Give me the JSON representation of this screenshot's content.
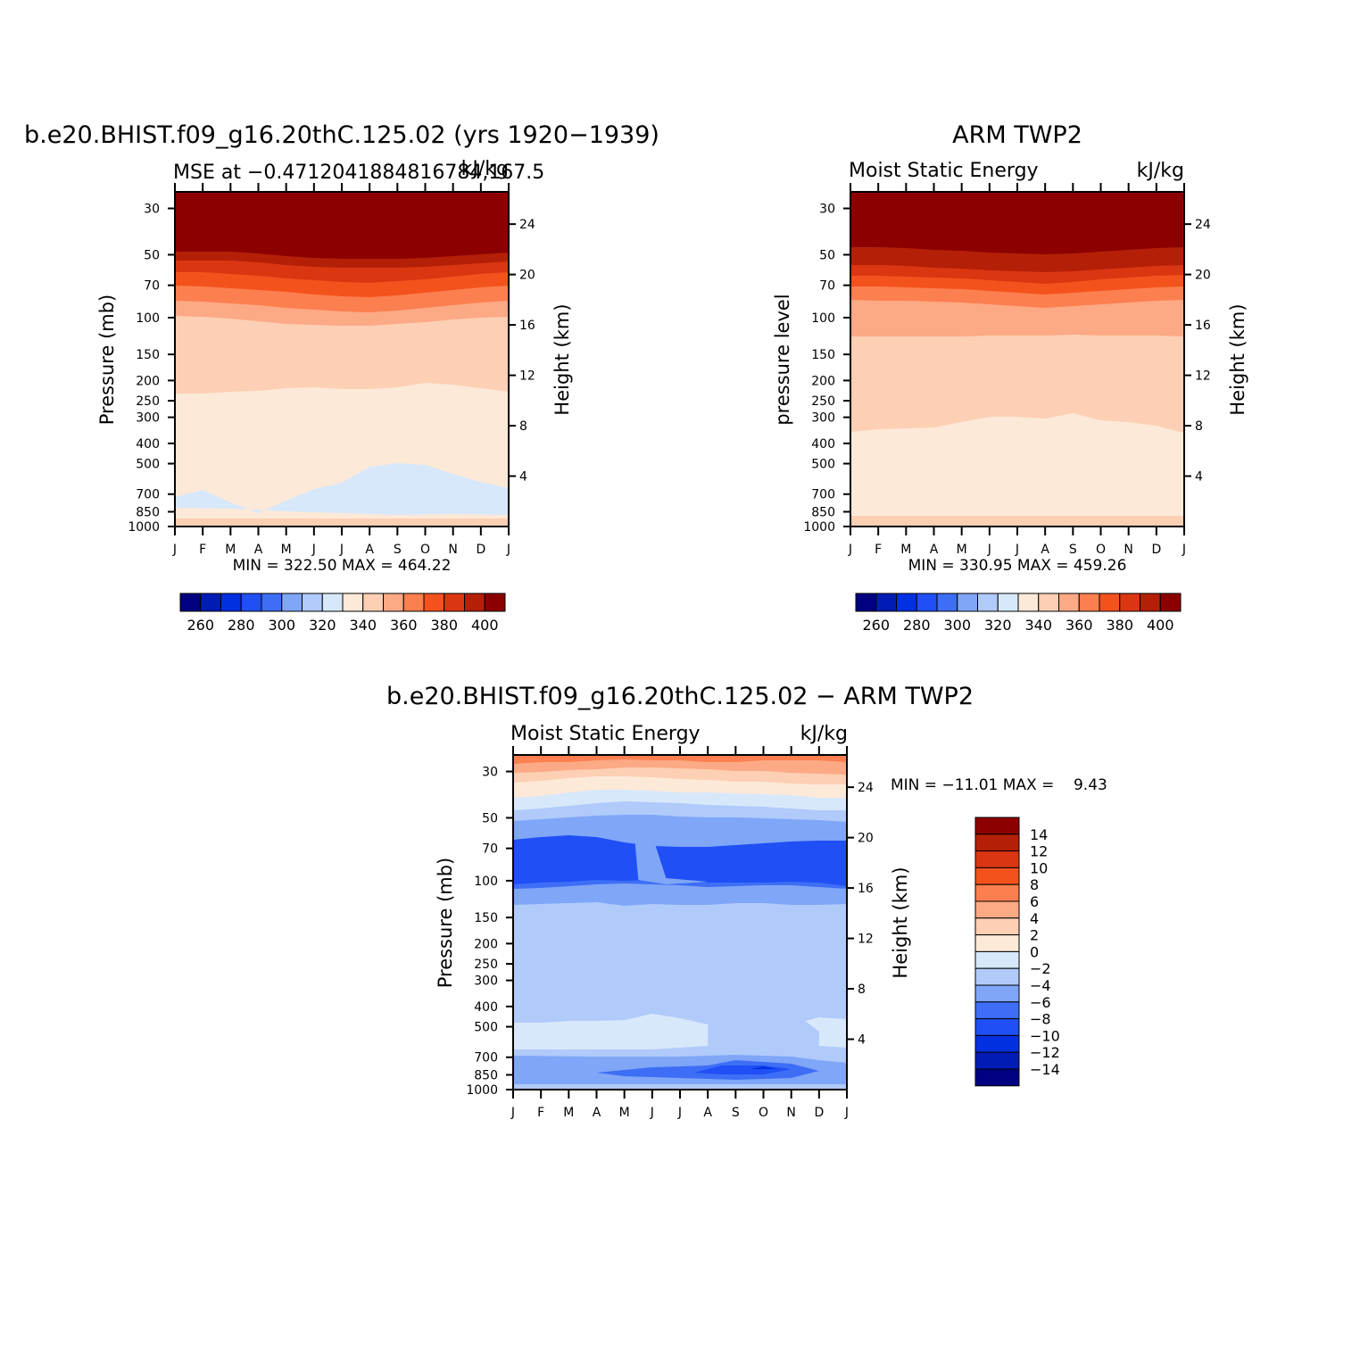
{
  "colors": {
    "levels": [
      "#000080",
      "#001cb4",
      "#0030e0",
      "#1f4ff5",
      "#3d6ef5",
      "#7fa6f7",
      "#b0cafa",
      "#d8e8fb",
      "#fde9d8",
      "#fdcfb4",
      "#fca985",
      "#fc7f4f",
      "#f4521d",
      "#db3612",
      "#b42007",
      "#8c0000"
    ]
  },
  "panels": [
    {
      "id": "model",
      "title": "b.e20.BHIST.f09_g16.20thC.125.02 (yrs 1920−1939)",
      "left_text": "MSE at −0.4712041884816784,167.5",
      "right_text": "kJ/kg",
      "ylabel": "Pressure (mb)",
      "y2label": "Height (km)",
      "stats": "MIN = 322.50 MAX = 464.22"
    },
    {
      "id": "obs",
      "title": "ARM TWP2",
      "left_text": "Moist Static Energy",
      "right_text": "kJ/kg",
      "ylabel": "pressure level",
      "y2label": "Height (km)",
      "stats": "MIN = 330.95 MAX = 459.26"
    },
    {
      "id": "diff",
      "title": "b.e20.BHIST.f09_g16.20thC.125.02 − ARM TWP2",
      "left_text": "Moist Static Energy",
      "right_text": "kJ/kg",
      "ylabel": "Pressure (mb)",
      "y2label": "Height (km)",
      "stats": "MIN = −11.01 MAX =    9.43"
    }
  ],
  "colorbars": {
    "abs_labels": [
      "260",
      "280",
      "300",
      "320",
      "340",
      "360",
      "380",
      "400"
    ],
    "diff_labels": [
      "14",
      "12",
      "10",
      "8",
      "6",
      "4",
      "2",
      "0",
      "−2",
      "−4",
      "−6",
      "−8",
      "−10",
      "−12",
      "−14"
    ]
  },
  "chart_data": [
    {
      "type": "heatmap",
      "title": "b.e20.BHIST.f09_g16.20thC.125.02 (yrs 1920−1939)",
      "subtitle": "MSE at −0.4712041884816784,167.5",
      "units": "kJ/kg",
      "ylabel": "Pressure (mb)",
      "y2label": "Height (km)",
      "x_ticks": [
        "J",
        "F",
        "M",
        "A",
        "M",
        "J",
        "J",
        "A",
        "S",
        "O",
        "N",
        "D",
        "J"
      ],
      "y_ticks": [
        30,
        50,
        70,
        100,
        150,
        200,
        250,
        300,
        400,
        500,
        700,
        850,
        1000
      ],
      "y2_ticks": [
        24,
        20,
        16,
        12,
        8,
        4
      ],
      "y_scale": "log",
      "ylim": [
        1000,
        25
      ],
      "contour_levels": [
        250,
        260,
        270,
        280,
        290,
        300,
        310,
        320,
        330,
        340,
        350,
        360,
        370,
        380,
        390,
        400
      ],
      "colorbar_labels": [
        260,
        280,
        300,
        320,
        340,
        360,
        380,
        400
      ],
      "min": 322.5,
      "max": 464.22
    },
    {
      "type": "heatmap",
      "title": "ARM TWP2",
      "subtitle": "Moist Static Energy",
      "units": "kJ/kg",
      "ylabel": "pressure level",
      "y2label": "Height (km)",
      "x_ticks": [
        "J",
        "F",
        "M",
        "A",
        "M",
        "J",
        "J",
        "A",
        "S",
        "O",
        "N",
        "D",
        "J"
      ],
      "y_ticks": [
        30,
        50,
        70,
        100,
        150,
        200,
        250,
        300,
        400,
        500,
        700,
        850,
        1000
      ],
      "y2_ticks": [
        24,
        20,
        16,
        12,
        8,
        4
      ],
      "y_scale": "log",
      "ylim": [
        1000,
        25
      ],
      "contour_levels": [
        250,
        260,
        270,
        280,
        290,
        300,
        310,
        320,
        330,
        340,
        350,
        360,
        370,
        380,
        390,
        400
      ],
      "colorbar_labels": [
        260,
        280,
        300,
        320,
        340,
        360,
        380,
        400
      ],
      "min": 330.95,
      "max": 459.26
    },
    {
      "type": "heatmap",
      "title": "b.e20.BHIST.f09_g16.20thC.125.02 − ARM TWP2",
      "subtitle": "Moist Static Energy",
      "units": "kJ/kg",
      "ylabel": "Pressure (mb)",
      "y2label": "Height (km)",
      "x_ticks": [
        "J",
        "F",
        "M",
        "A",
        "M",
        "J",
        "J",
        "A",
        "S",
        "O",
        "N",
        "D",
        "J"
      ],
      "y_ticks": [
        30,
        50,
        70,
        100,
        150,
        200,
        250,
        300,
        400,
        500,
        700,
        850,
        1000
      ],
      "y2_ticks": [
        24,
        20,
        16,
        12,
        8,
        4
      ],
      "y_scale": "log",
      "ylim": [
        1000,
        25
      ],
      "contour_levels": [
        -14,
        -12,
        -10,
        -8,
        -6,
        -4,
        -2,
        0,
        2,
        4,
        6,
        8,
        10,
        12,
        14
      ],
      "colorbar_labels": [
        14,
        12,
        10,
        8,
        6,
        4,
        2,
        0,
        -2,
        -4,
        -6,
        -8,
        -10,
        -12,
        -14
      ],
      "min": -11.01,
      "max": 9.43
    }
  ]
}
